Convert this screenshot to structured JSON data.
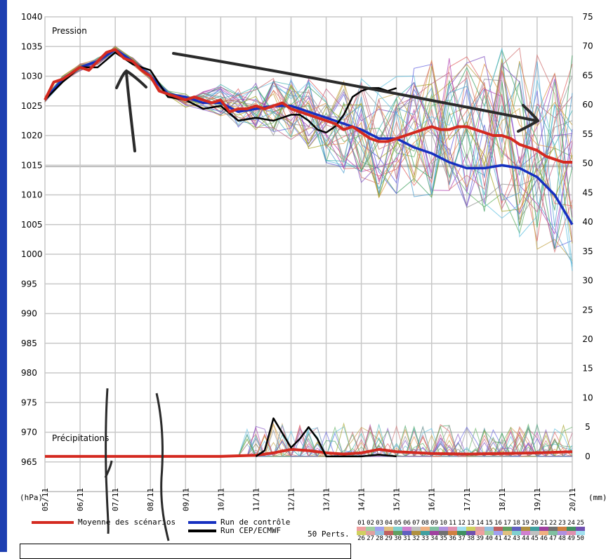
{
  "chart_data": {
    "type": "line",
    "title": "",
    "pressure_label": "Pression",
    "precip_label": "Précipitations",
    "left_unit": "(hPa)",
    "right_unit": "(mm)",
    "left_ticks": [
      1040,
      1035,
      1030,
      1025,
      1020,
      1015,
      1010,
      1005,
      1000,
      995,
      990,
      985,
      980,
      975,
      970,
      965
    ],
    "right_ticks": [
      75,
      70,
      65,
      60,
      55,
      50,
      45,
      40,
      35,
      30,
      25,
      20,
      15,
      10,
      5,
      0
    ],
    "x_ticks": [
      "05/11",
      "06/11",
      "07/11",
      "08/11",
      "09/11",
      "10/11",
      "11/11",
      "12/11",
      "13/11",
      "14/11",
      "15/11",
      "16/11",
      "17/11",
      "18/11",
      "19/11",
      "20/11"
    ],
    "ylim": [
      960,
      1040
    ],
    "y2lim": [
      -6,
      75
    ],
    "grid": true,
    "series": [
      {
        "name": "Moyenne des scénarios",
        "color": "#d42a20",
        "axis": "left",
        "x": [
          5,
          5.25,
          5.5,
          5.75,
          6,
          6.25,
          6.5,
          6.75,
          7,
          7.25,
          7.5,
          7.75,
          8,
          8.25,
          8.5,
          8.75,
          9,
          9.25,
          9.5,
          9.75,
          10,
          10.25,
          10.5,
          10.75,
          11,
          11.25,
          11.5,
          11.75,
          12,
          12.25,
          12.5,
          12.75,
          13,
          13.25,
          13.5,
          13.75,
          14,
          14.25,
          14.5,
          14.75,
          15,
          15.25,
          15.5,
          15.75,
          16,
          16.25,
          16.5,
          16.75,
          17,
          17.25,
          17.5,
          17.75,
          18,
          18.25,
          18.5,
          18.75,
          19,
          19.25,
          19.5,
          19.75,
          20
        ],
        "values": [
          1026,
          1029,
          1029.5,
          1030.5,
          1031.5,
          1031,
          1032.5,
          1034,
          1034.5,
          1033,
          1032.5,
          1031,
          1030,
          1027.5,
          1027,
          1026.5,
          1026,
          1026.5,
          1026,
          1025.5,
          1026,
          1024,
          1024.5,
          1024.5,
          1025,
          1024.5,
          1025,
          1025.5,
          1024.5,
          1024,
          1023.5,
          1023,
          1022.5,
          1022,
          1021,
          1021.5,
          1020.5,
          1019.5,
          1019,
          1019,
          1019.5,
          1020,
          1020.5,
          1021,
          1021.5,
          1021,
          1021,
          1021.5,
          1021.5,
          1021,
          1020.5,
          1020,
          1020,
          1019.5,
          1018.5,
          1018,
          1017.5,
          1016.5,
          1016,
          1015.5,
          1015.5
        ]
      },
      {
        "name": "Run de contrôle",
        "color": "#1630c0",
        "axis": "left",
        "x": [
          5,
          5.5,
          6,
          6.5,
          7,
          7.5,
          8,
          8.5,
          9,
          9.5,
          10,
          10.5,
          11,
          11.5,
          12,
          12.5,
          13,
          13.5,
          14,
          14.5,
          15,
          15.5,
          16,
          16.5,
          17,
          17.5,
          18,
          18.5,
          19,
          19.5,
          20
        ],
        "values": [
          1026,
          1029.5,
          1031.5,
          1032.5,
          1034.5,
          1032.5,
          1030,
          1027,
          1026.5,
          1025.5,
          1025.5,
          1024,
          1024.5,
          1025,
          1025,
          1024,
          1023,
          1022,
          1021,
          1019.5,
          1019.5,
          1018,
          1017,
          1015.5,
          1014.5,
          1014.5,
          1015,
          1014.5,
          1013,
          1010,
          1005
        ]
      },
      {
        "name": "Run CEP/ECMWF",
        "color": "#000000",
        "axis": "left",
        "x": [
          5,
          5.5,
          6,
          6.5,
          7,
          7.5,
          8,
          8.5,
          9,
          9.5,
          10,
          10.5,
          11,
          11.5,
          12,
          12.25,
          12.5,
          12.75,
          13,
          13.25,
          13.5,
          13.75,
          14,
          14.25,
          14.5,
          14.75,
          15
        ],
        "values": [
          1026,
          1029,
          1031.5,
          1031.5,
          1034,
          1032,
          1031,
          1026.5,
          1026,
          1024.5,
          1025,
          1022.5,
          1023,
          1022.5,
          1023.5,
          1023.5,
          1022.5,
          1021,
          1020.5,
          1021.5,
          1023.5,
          1026.5,
          1027.5,
          1028,
          1028,
          1027.5,
          1028
        ]
      },
      {
        "name": "Moyenne des scénarios",
        "color": "#d42a20",
        "axis": "right",
        "x": [
          5,
          6,
          7,
          8,
          9,
          10,
          11,
          11.5,
          12,
          12.5,
          13,
          13.5,
          14,
          14.5,
          15,
          16,
          17,
          18,
          19,
          20
        ],
        "values": [
          0,
          0,
          0,
          0,
          0,
          0,
          0.2,
          0.6,
          1.2,
          1.0,
          0.6,
          0.4,
          0.6,
          1.2,
          0.8,
          0.5,
          0.4,
          0.5,
          0.6,
          0.8
        ]
      },
      {
        "name": "Run CEP/ECMWF",
        "color": "#000000",
        "axis": "right",
        "x": [
          11,
          11.25,
          11.5,
          11.75,
          12,
          12.25,
          12.5,
          12.75,
          13,
          13.5,
          14,
          14.5,
          15
        ],
        "values": [
          0,
          1,
          6.5,
          4,
          1.5,
          3,
          5,
          3,
          0,
          0,
          0,
          0.3,
          0
        ]
      }
    ],
    "legend_members_top": [
      "01",
      "02",
      "03",
      "04",
      "05",
      "06",
      "07",
      "08",
      "09",
      "10",
      "11",
      "12",
      "13",
      "14",
      "15",
      "16",
      "17",
      "18",
      "19",
      "20",
      "21",
      "22",
      "23",
      "24",
      "25"
    ],
    "legend_members_bottom": [
      "26",
      "27",
      "28",
      "29",
      "30",
      "31",
      "32",
      "33",
      "34",
      "35",
      "36",
      "37",
      "38",
      "39",
      "40",
      "41",
      "42",
      "43",
      "44",
      "45",
      "46",
      "47",
      "48",
      "49",
      "50"
    ],
    "perturbations_label": "50 Perts."
  }
}
